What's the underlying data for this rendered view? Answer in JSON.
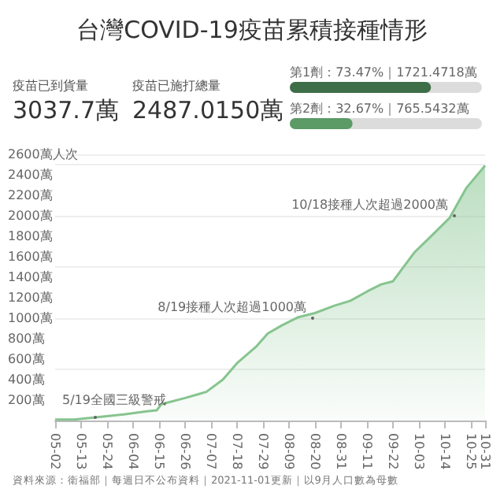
{
  "chart_data": [
    {
      "type": "other",
      "title": "台灣COVID-19疫苗累積接種情形",
      "annotations": [
        "疫苗已到貨量",
        "3037.7萬",
        "疫苗已施打總量",
        "2487.0150萬"
      ]
    },
    {
      "type": "bar",
      "orientation": "horizontal",
      "categories": [
        null,
        null
      ],
      "values": [
        73.47,
        32.67
      ],
      "colors": [
        "#3e6e48",
        "#5c9a66"
      ],
      "xlim": [
        0,
        100
      ],
      "tick_labels": false,
      "value_labels": [
        "第1劑：73.47%｜1721.4718萬",
        "第2劑：32.67%｜765.5432萬"
      ]
    },
    {
      "type": "area",
      "x": [
        "--05-02",
        "--05-10",
        "--05-19",
        "--05-31",
        "--06-10",
        "--06-14",
        "--06-16",
        "--06-26",
        "--07-05",
        "--07-12",
        "--07-18",
        "--07-26",
        "--07-31",
        "--08-06",
        "--08-13",
        "--08-20",
        "--08-28",
        "--09-04",
        "--09-11",
        "--09-17",
        "--09-22",
        "--10-01",
        "--10-09",
        "--10-16",
        "--10-23",
        "--10-31"
      ],
      "series": [
        {
          "color": "#86c48f",
          "values": [
            10,
            10,
            30,
            60,
            90,
            100,
            160,
            220,
            280,
            400,
            560,
            720,
            850,
            930,
            1010,
            1050,
            1120,
            1170,
            1260,
            1330,
            1360,
            1640,
            1820,
            1980,
            2270,
            2490
          ]
        }
      ],
      "xlim": [
        "--05-02",
        "--10-31"
      ],
      "xticks": [
        {
          "value": "--05-02",
          "label": "05-02"
        },
        {
          "value": "--05-13",
          "label": "05-13"
        },
        {
          "value": "--05-24",
          "label": "05-24"
        },
        {
          "value": "--06-04",
          "label": "06-04"
        },
        {
          "value": "--06-15",
          "label": "06-15"
        },
        {
          "value": "--06-26",
          "label": "06-26"
        },
        {
          "value": "--07-07",
          "label": "07-07"
        },
        {
          "value": "--07-18",
          "label": "07-18"
        },
        {
          "value": "--07-29",
          "label": "07-29"
        },
        {
          "value": "--08-09",
          "label": "08-09"
        },
        {
          "value": "--08-20",
          "label": "08-20"
        },
        {
          "value": "--08-31",
          "label": "08-31"
        },
        {
          "value": "--09-11",
          "label": "09-11"
        },
        {
          "value": "--09-22",
          "label": "09-22"
        },
        {
          "value": "--10-03",
          "label": "10-03"
        },
        {
          "value": "--10-14",
          "label": "10-14"
        },
        {
          "value": "--10-25",
          "label": "10-25"
        },
        {
          "value": "--10-31",
          "label": "10-31"
        }
      ],
      "ylim": [
        0,
        2600
      ],
      "yticks": [
        {
          "value": 0,
          "label": null
        },
        {
          "value": 200,
          "label": "200萬"
        },
        {
          "value": 400,
          "label": "400萬"
        },
        {
          "value": 600,
          "label": "600萬"
        },
        {
          "value": 800,
          "label": "800萬"
        },
        {
          "value": 1000,
          "label": "1000萬"
        },
        {
          "value": 1200,
          "label": "1200萬"
        },
        {
          "value": 1400,
          "label": "1400萬"
        },
        {
          "value": 1600,
          "label": "1600萬"
        },
        {
          "value": 1800,
          "label": "1800萬"
        },
        {
          "value": 2000,
          "label": "2000萬"
        },
        {
          "value": 2200,
          "label": "2200萬"
        },
        {
          "value": 2400,
          "label": "2400萬"
        },
        {
          "value": 2600,
          "label": "2600萬人次"
        }
      ],
      "grid": "y",
      "marker": "none",
      "annotations": [
        {
          "text": "5/19全國三級警戒",
          "x": "--05-19",
          "y": 30
        },
        {
          "text": "8/19接種人次超過1000萬",
          "x": "--08-19",
          "y": 1000
        },
        {
          "text": "10/18接種人次超過2000萬",
          "x": "--10-18",
          "y": 2000
        },
        "資料來源：衛福部｜每週日不公布資料｜2021-11-01更新｜以9月人口數為母數"
      ]
    }
  ]
}
